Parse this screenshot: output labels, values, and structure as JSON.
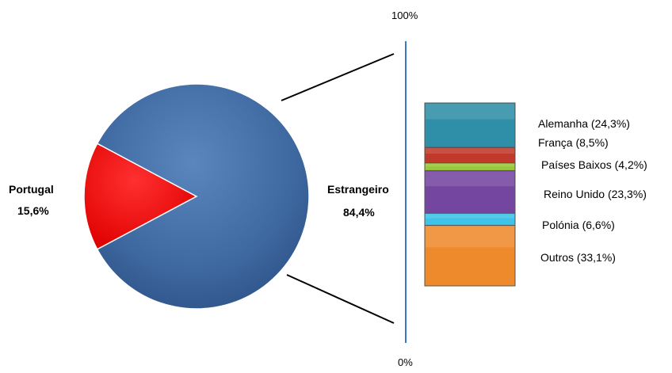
{
  "chart_data": [
    {
      "type": "pie",
      "slices": [
        {
          "label": "Portugal",
          "value": 15.6,
          "value_label": "15,6%",
          "color": "#ff0000"
        },
        {
          "label": "Estrangeiro",
          "value": 84.4,
          "value_label": "84,4%",
          "color": "#3f6aa3"
        }
      ]
    },
    {
      "type": "bar",
      "stacked": true,
      "axis_top_label": "100%",
      "axis_bottom_label": "0%",
      "ylim": [
        0,
        100
      ],
      "series": [
        {
          "name": "Alemanha",
          "value": 24.3,
          "label": "Alemanha  (24,3%)",
          "color": "#2f8fa8"
        },
        {
          "name": "França",
          "value": 8.5,
          "label": "França (8,5%)",
          "color": "#c0392b"
        },
        {
          "name": "Países Baixos",
          "value": 4.2,
          "label": "Países Baixos (4,2%)",
          "color": "#9bc83b"
        },
        {
          "name": "Reino Unido",
          "value": 23.3,
          "label": "Reino Unido (23,3%)",
          "color": "#7446a0"
        },
        {
          "name": "Polónia",
          "value": 6.6,
          "label": "Polónia  (6,6%)",
          "color": "#3fc3e8"
        },
        {
          "name": "Outros",
          "value": 33.1,
          "label": "Outros  (33,1%)",
          "color": "#ee8a2c"
        }
      ]
    }
  ]
}
